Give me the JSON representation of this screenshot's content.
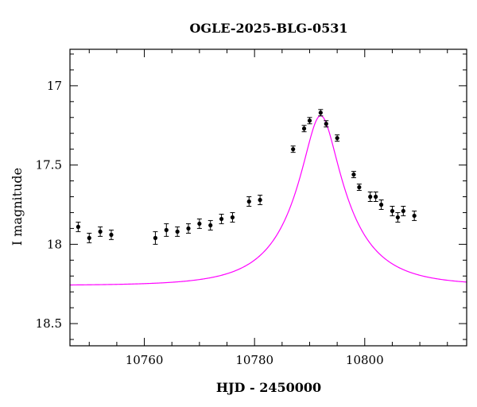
{
  "chart_data": {
    "type": "scatter",
    "title": "OGLE-2025-BLG-0531",
    "xlabel": "HJD - 2450000",
    "ylabel": "I magnitude",
    "xlim": [
      10746.5,
      10818.5
    ],
    "ylim": [
      18.64,
      16.77
    ],
    "y_inverted": true,
    "x_ticks": [
      10760,
      10780,
      10800
    ],
    "y_ticks": [
      17,
      17.5,
      18,
      18.5
    ],
    "y_tick_labels": [
      "17",
      "17.5",
      "18",
      "18.5"
    ],
    "grid": false,
    "colors": {
      "points": "#000000",
      "model": "#ff00ff"
    },
    "series": [
      {
        "kind": "points",
        "x": [
          10748.0,
          10750.0,
          10752.0,
          10754.0,
          10762.0,
          10764.0,
          10766.0,
          10768.0,
          10770.0,
          10772.0,
          10774.0,
          10776.0,
          10779.0,
          10781.0,
          10787.0,
          10789.0,
          10790.0,
          10792.0,
          10793.0,
          10795.0,
          10798.0,
          10799.0,
          10801.0,
          10802.0,
          10803.0,
          10805.0,
          10806.0,
          10807.0,
          10809.0
        ],
        "y": [
          17.89,
          17.96,
          17.92,
          17.94,
          17.96,
          17.91,
          17.92,
          17.9,
          17.87,
          17.88,
          17.84,
          17.83,
          17.73,
          17.72,
          17.4,
          17.27,
          17.22,
          17.17,
          17.24,
          17.33,
          17.56,
          17.64,
          17.7,
          17.7,
          17.75,
          17.79,
          17.83,
          17.79,
          17.82
        ],
        "yerr": [
          0.03,
          0.03,
          0.03,
          0.03,
          0.04,
          0.04,
          0.03,
          0.03,
          0.03,
          0.03,
          0.03,
          0.03,
          0.03,
          0.03,
          0.02,
          0.02,
          0.02,
          0.02,
          0.02,
          0.02,
          0.02,
          0.02,
          0.03,
          0.03,
          0.03,
          0.03,
          0.03,
          0.03,
          0.03
        ]
      },
      {
        "kind": "model",
        "t0": 10792.0,
        "u0": 0.27,
        "tE": 11.0,
        "baseline_mag": 18.26,
        "blend_fraction": 0.6
      }
    ]
  }
}
